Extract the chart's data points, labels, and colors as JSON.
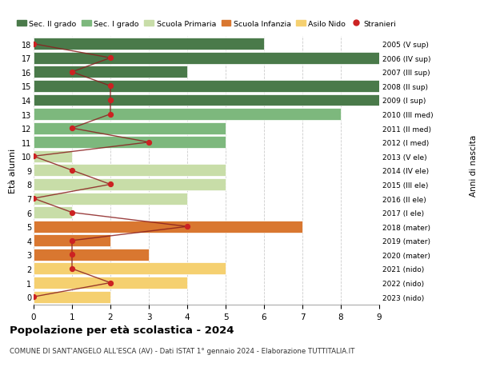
{
  "ages": [
    18,
    17,
    16,
    15,
    14,
    13,
    12,
    11,
    10,
    9,
    8,
    7,
    6,
    5,
    4,
    3,
    2,
    1,
    0
  ],
  "years": [
    "2005 (V sup)",
    "2006 (IV sup)",
    "2007 (III sup)",
    "2008 (II sup)",
    "2009 (I sup)",
    "2010 (III med)",
    "2011 (II med)",
    "2012 (I med)",
    "2013 (V ele)",
    "2014 (IV ele)",
    "2015 (III ele)",
    "2016 (II ele)",
    "2017 (I ele)",
    "2018 (mater)",
    "2019 (mater)",
    "2020 (mater)",
    "2021 (nido)",
    "2022 (nido)",
    "2023 (nido)"
  ],
  "bar_values": [
    6,
    9,
    4,
    9,
    9,
    8,
    5,
    5,
    1,
    5,
    5,
    4,
    1,
    7,
    2,
    3,
    5,
    4,
    2
  ],
  "stranieri": [
    0,
    2,
    1,
    2,
    2,
    2,
    1,
    3,
    0,
    1,
    2,
    0,
    1,
    4,
    1,
    1,
    1,
    2,
    0
  ],
  "colors": {
    "sec2": "#4a7a4a",
    "sec1": "#7db87d",
    "primaria": "#c8dda8",
    "infanzia": "#d97730",
    "nido": "#f5d070",
    "stranieri_line": "#8b2020",
    "stranieri_dot": "#cc2222"
  },
  "school_types": {
    "sec2": [
      18,
      17,
      16,
      15,
      14
    ],
    "sec1": [
      13,
      12,
      11
    ],
    "primaria": [
      10,
      9,
      8,
      7,
      6
    ],
    "infanzia": [
      5,
      4,
      3
    ],
    "nido": [
      2,
      1,
      0
    ]
  },
  "title": "Popolazione per età scolastica - 2024",
  "subtitle": "COMUNE DI SANT'ANGELO ALL'ESCA (AV) - Dati ISTAT 1° gennaio 2024 - Elaborazione TUTTITALIA.IT",
  "ylabel": "Età alunni",
  "right_label": "Anni di nascita",
  "xlim": [
    0,
    9
  ],
  "legend_labels": [
    "Sec. II grado",
    "Sec. I grado",
    "Scuola Primaria",
    "Scuola Infanzia",
    "Asilo Nido",
    "Stranieri"
  ]
}
